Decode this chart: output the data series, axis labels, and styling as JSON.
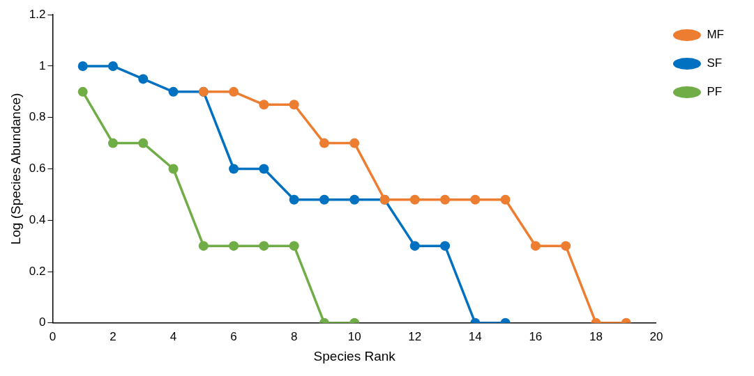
{
  "chart_data": {
    "type": "line",
    "xlabel": "Species Rank",
    "ylabel": "Log (Species Abundance)",
    "xlim": [
      0,
      20
    ],
    "xticks": [
      0,
      2,
      4,
      6,
      8,
      10,
      12,
      14,
      16,
      18,
      20
    ],
    "ylim": [
      0,
      1.2
    ],
    "yticks": [
      0,
      0.2,
      0.4,
      0.6,
      0.8,
      1,
      1.2
    ],
    "grid": false,
    "legend": "top right",
    "marker": "circle",
    "line_style": "solid",
    "series": [
      {
        "name": "MF",
        "color": "#ed7d31",
        "x": [
          5,
          6,
          7,
          8,
          9,
          10,
          11,
          12,
          13,
          14,
          15,
          16,
          17,
          18,
          19
        ],
        "values": [
          0.9,
          0.9,
          0.85,
          0.85,
          0.7,
          0.7,
          0.48,
          0.48,
          0.48,
          0.48,
          0.48,
          0.3,
          0.3,
          0,
          0
        ]
      },
      {
        "name": "SF",
        "color": "#0070c0",
        "x": [
          1,
          2,
          3,
          4,
          5,
          6,
          7,
          8,
          9,
          10,
          11,
          12,
          13,
          14,
          15
        ],
        "values": [
          1,
          1,
          0.95,
          0.9,
          0.9,
          0.6,
          0.6,
          0.48,
          0.48,
          0.48,
          0.48,
          0.3,
          0.3,
          0,
          0
        ]
      },
      {
        "name": "PF",
        "color": "#70ad47",
        "x": [
          1,
          2,
          3,
          4,
          5,
          6,
          7,
          8,
          9,
          10
        ],
        "values": [
          0.9,
          0.7,
          0.7,
          0.6,
          0.3,
          0.3,
          0.3,
          0.3,
          0,
          0
        ]
      }
    ]
  }
}
